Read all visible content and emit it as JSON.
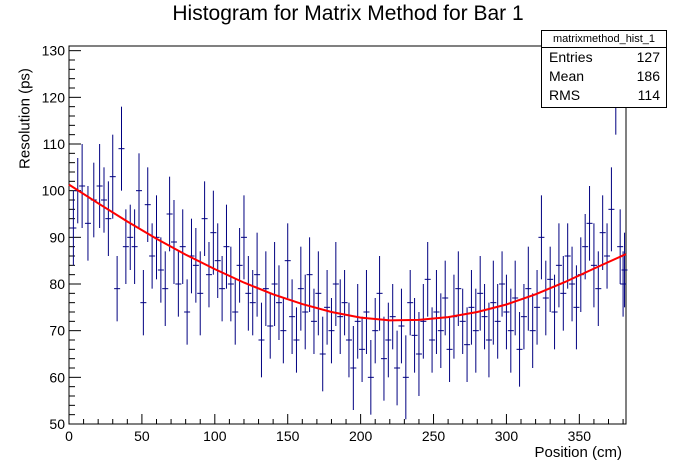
{
  "chart_data": {
    "type": "scatter",
    "title": "Histogram for Matrix Method for Bar 1",
    "xlabel": "Position (cm)",
    "ylabel": "Resolution (ps)",
    "xlim": [
      0,
      382
    ],
    "ylim": [
      50,
      131
    ],
    "xticks": [
      0,
      50,
      100,
      150,
      200,
      250,
      300,
      350
    ],
    "yticks": [
      50,
      60,
      70,
      80,
      90,
      100,
      110,
      120,
      130
    ],
    "grid": false,
    "series": [
      {
        "name": "matrixmethod_hist_1",
        "color": "#000080",
        "points": [
          [
            3,
            92,
            8
          ],
          [
            6,
            100,
            7
          ],
          [
            9,
            101,
            9
          ],
          [
            13,
            93,
            8
          ],
          [
            17,
            98,
            8
          ],
          [
            21,
            101,
            9
          ],
          [
            24,
            98,
            7
          ],
          [
            27,
            94,
            8
          ],
          [
            30,
            103,
            9
          ],
          [
            33,
            79,
            7
          ],
          [
            36,
            109,
            9
          ],
          [
            39,
            88,
            8
          ],
          [
            42,
            90,
            7
          ],
          [
            45,
            88,
            8
          ],
          [
            48,
            100,
            8
          ],
          [
            51,
            76,
            7
          ],
          [
            54,
            97,
            8
          ],
          [
            57,
            86,
            7
          ],
          [
            60,
            90,
            9
          ],
          [
            63,
            83,
            7
          ],
          [
            66,
            79,
            8
          ],
          [
            69,
            95,
            8
          ],
          [
            72,
            89,
            9
          ],
          [
            75,
            80,
            7
          ],
          [
            78,
            88,
            8
          ],
          [
            81,
            74,
            7
          ],
          [
            84,
            86,
            8
          ],
          [
            87,
            84,
            8
          ],
          [
            90,
            78,
            9
          ],
          [
            93,
            94,
            8
          ],
          [
            96,
            82,
            7
          ],
          [
            99,
            91,
            9
          ],
          [
            102,
            85,
            8
          ],
          [
            105,
            79,
            7
          ],
          [
            108,
            88,
            9
          ],
          [
            111,
            80,
            8
          ],
          [
            114,
            74,
            7
          ],
          [
            117,
            84,
            8
          ],
          [
            120,
            90,
            9
          ],
          [
            123,
            78,
            8
          ],
          [
            126,
            76,
            7
          ],
          [
            129,
            82,
            9
          ],
          [
            132,
            68,
            8
          ],
          [
            135,
            79,
            8
          ],
          [
            138,
            71,
            7
          ],
          [
            141,
            80,
            9
          ],
          [
            144,
            76,
            8
          ],
          [
            147,
            70,
            7
          ],
          [
            150,
            85,
            8
          ],
          [
            153,
            73,
            8
          ],
          [
            156,
            68,
            7
          ],
          [
            159,
            79,
            9
          ],
          [
            162,
            74,
            8
          ],
          [
            165,
            82,
            8
          ],
          [
            168,
            72,
            7
          ],
          [
            171,
            78,
            9
          ],
          [
            174,
            65,
            8
          ],
          [
            177,
            75,
            8
          ],
          [
            180,
            70,
            7
          ],
          [
            183,
            80,
            9
          ],
          [
            186,
            73,
            8
          ],
          [
            189,
            76,
            7
          ],
          [
            192,
            68,
            8
          ],
          [
            195,
            62,
            9
          ],
          [
            198,
            72,
            8
          ],
          [
            201,
            66,
            7
          ],
          [
            204,
            74,
            9
          ],
          [
            207,
            60,
            8
          ],
          [
            210,
            70,
            7
          ],
          [
            213,
            78,
            8
          ],
          [
            216,
            64,
            9
          ],
          [
            219,
            68,
            8
          ],
          [
            222,
            73,
            7
          ],
          [
            225,
            62,
            8
          ],
          [
            228,
            71,
            8
          ],
          [
            231,
            60,
            9
          ],
          [
            234,
            76,
            7
          ],
          [
            237,
            69,
            8
          ],
          [
            240,
            65,
            9
          ],
          [
            243,
            72,
            8
          ],
          [
            246,
            81,
            8
          ],
          [
            249,
            68,
            7
          ],
          [
            252,
            74,
            9
          ],
          [
            255,
            70,
            8
          ],
          [
            258,
            77,
            8
          ],
          [
            261,
            66,
            7
          ],
          [
            264,
            73,
            9
          ],
          [
            267,
            79,
            8
          ],
          [
            270,
            72,
            7
          ],
          [
            273,
            67,
            8
          ],
          [
            276,
            75,
            8
          ],
          [
            279,
            70,
            9
          ],
          [
            282,
            78,
            8
          ],
          [
            285,
            73,
            7
          ],
          [
            288,
            68,
            8
          ],
          [
            291,
            76,
            9
          ],
          [
            294,
            72,
            8
          ],
          [
            297,
            80,
            7
          ],
          [
            300,
            74,
            8
          ],
          [
            303,
            70,
            9
          ],
          [
            306,
            77,
            8
          ],
          [
            309,
            66,
            8
          ],
          [
            312,
            73,
            7
          ],
          [
            315,
            79,
            9
          ],
          [
            318,
            70,
            8
          ],
          [
            321,
            75,
            8
          ],
          [
            324,
            90,
            9
          ],
          [
            327,
            77,
            8
          ],
          [
            330,
            81,
            7
          ],
          [
            333,
            74,
            8
          ],
          [
            336,
            84,
            9
          ],
          [
            339,
            78,
            8
          ],
          [
            342,
            86,
            7
          ],
          [
            345,
            80,
            8
          ],
          [
            348,
            75,
            9
          ],
          [
            351,
            82,
            8
          ],
          [
            354,
            88,
            7
          ],
          [
            357,
            93,
            8
          ],
          [
            360,
            84,
            9
          ],
          [
            363,
            79,
            8
          ],
          [
            366,
            91,
            8
          ],
          [
            369,
            86,
            7
          ],
          [
            372,
            96,
            9
          ],
          [
            375,
            121,
            9
          ],
          [
            378,
            88,
            8
          ],
          [
            381,
            83,
            8
          ],
          [
            380,
            80,
            7
          ]
        ]
      },
      {
        "name": "fit",
        "color": "#ff0000",
        "type": "line",
        "points": [
          [
            0,
            101.3
          ],
          [
            20,
            97.3
          ],
          [
            40,
            93.4
          ],
          [
            60,
            89.7
          ],
          [
            80,
            86.3
          ],
          [
            100,
            83.2
          ],
          [
            120,
            80.3
          ],
          [
            140,
            77.8
          ],
          [
            160,
            75.7
          ],
          [
            180,
            74.0
          ],
          [
            200,
            72.8
          ],
          [
            220,
            72.2
          ],
          [
            240,
            72.3
          ],
          [
            260,
            72.9
          ],
          [
            280,
            74.0
          ],
          [
            300,
            75.6
          ],
          [
            320,
            77.8
          ],
          [
            340,
            80.4
          ],
          [
            360,
            83.3
          ],
          [
            382,
            86.4
          ]
        ]
      }
    ],
    "legend": "top-right",
    "stats": {
      "name": "matrixmethod_hist_1",
      "entries_label": "Entries",
      "entries": "127",
      "mean_label": "Mean",
      "mean": "186",
      "rms_label": "RMS",
      "rms": "114"
    }
  }
}
